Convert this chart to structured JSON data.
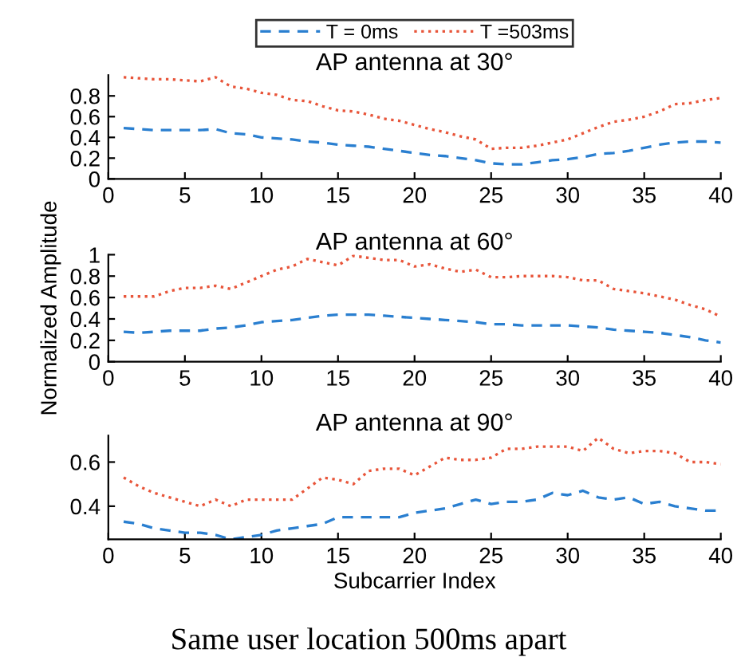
{
  "chart_data": [
    {
      "type": "line",
      "title": "AP antenna at 30°",
      "legend": "top",
      "grid": false,
      "marker": "none",
      "x": [
        1,
        2,
        3,
        4,
        5,
        6,
        7,
        8,
        9,
        10,
        11,
        12,
        13,
        14,
        15,
        16,
        17,
        18,
        19,
        20,
        21,
        22,
        23,
        24,
        25,
        26,
        27,
        28,
        29,
        30,
        31,
        32,
        33,
        34,
        35,
        36,
        37,
        38,
        39,
        40
      ],
      "xlim": [
        0,
        40
      ],
      "xticks": [
        0,
        5,
        10,
        15,
        20,
        25,
        30,
        35,
        40
      ],
      "ylim": [
        0,
        1
      ],
      "yticks": [
        0,
        0.2,
        0.4,
        0.6,
        0.8
      ],
      "series": [
        {
          "name": "T = 0ms",
          "color": "#2a7fd0",
          "line_style": "dashed",
          "values": [
            0.49,
            0.48,
            0.47,
            0.47,
            0.47,
            0.47,
            0.48,
            0.44,
            0.43,
            0.4,
            0.39,
            0.38,
            0.36,
            0.35,
            0.33,
            0.32,
            0.31,
            0.29,
            0.27,
            0.25,
            0.23,
            0.22,
            0.2,
            0.18,
            0.15,
            0.14,
            0.14,
            0.16,
            0.18,
            0.19,
            0.21,
            0.24,
            0.25,
            0.27,
            0.3,
            0.33,
            0.35,
            0.36,
            0.36,
            0.35
          ]
        },
        {
          "name": "T =503ms",
          "color": "#e8553a",
          "line_style": "dotted",
          "values": [
            0.98,
            0.97,
            0.96,
            0.96,
            0.95,
            0.94,
            0.98,
            0.89,
            0.87,
            0.83,
            0.81,
            0.76,
            0.75,
            0.7,
            0.66,
            0.65,
            0.62,
            0.58,
            0.56,
            0.52,
            0.48,
            0.45,
            0.41,
            0.38,
            0.29,
            0.3,
            0.3,
            0.32,
            0.35,
            0.38,
            0.44,
            0.5,
            0.55,
            0.57,
            0.6,
            0.65,
            0.72,
            0.73,
            0.76,
            0.78
          ]
        }
      ]
    },
    {
      "type": "line",
      "title": "AP antenna at 60°",
      "ylabel": "Normalized Amplitude",
      "grid": false,
      "marker": "none",
      "x": [
        1,
        2,
        3,
        4,
        5,
        6,
        7,
        8,
        9,
        10,
        11,
        12,
        13,
        14,
        15,
        16,
        17,
        18,
        19,
        20,
        21,
        22,
        23,
        24,
        25,
        26,
        27,
        28,
        29,
        30,
        31,
        32,
        33,
        34,
        35,
        36,
        37,
        38,
        39,
        40
      ],
      "xlim": [
        0,
        40
      ],
      "xticks": [
        0,
        5,
        10,
        15,
        20,
        25,
        30,
        35,
        40
      ],
      "ylim": [
        0,
        1
      ],
      "yticks": [
        0,
        0.2,
        0.4,
        0.6,
        0.8,
        1
      ],
      "series": [
        {
          "color": "#2a7fd0",
          "line_style": "dashed",
          "values": [
            0.28,
            0.27,
            0.28,
            0.29,
            0.29,
            0.29,
            0.31,
            0.32,
            0.34,
            0.37,
            0.38,
            0.39,
            0.41,
            0.43,
            0.44,
            0.44,
            0.44,
            0.43,
            0.42,
            0.41,
            0.4,
            0.39,
            0.38,
            0.37,
            0.35,
            0.35,
            0.34,
            0.34,
            0.34,
            0.34,
            0.33,
            0.32,
            0.3,
            0.29,
            0.28,
            0.27,
            0.25,
            0.23,
            0.2,
            0.18
          ]
        },
        {
          "color": "#e8553a",
          "line_style": "dotted",
          "values": [
            0.61,
            0.61,
            0.61,
            0.66,
            0.69,
            0.69,
            0.71,
            0.68,
            0.74,
            0.8,
            0.86,
            0.89,
            0.96,
            0.93,
            0.9,
            0.99,
            0.97,
            0.95,
            0.95,
            0.89,
            0.91,
            0.87,
            0.84,
            0.86,
            0.79,
            0.79,
            0.8,
            0.8,
            0.8,
            0.79,
            0.76,
            0.76,
            0.68,
            0.66,
            0.64,
            0.61,
            0.58,
            0.53,
            0.49,
            0.42
          ]
        }
      ]
    },
    {
      "type": "line",
      "title": "AP antenna at 90°",
      "xlabel": "Subcarrier Index",
      "grid": false,
      "marker": "none",
      "annotations": [
        "Same user location 500ms apart"
      ],
      "x": [
        1,
        2,
        3,
        4,
        5,
        6,
        7,
        8,
        9,
        10,
        11,
        12,
        13,
        14,
        15,
        16,
        17,
        18,
        19,
        20,
        21,
        22,
        23,
        24,
        25,
        26,
        27,
        28,
        29,
        30,
        31,
        32,
        33,
        34,
        35,
        36,
        37,
        38,
        39,
        40
      ],
      "xlim": [
        0,
        40
      ],
      "xticks": [
        0,
        5,
        10,
        15,
        20,
        25,
        30,
        35,
        40
      ],
      "ylim": [
        0.25,
        0.72
      ],
      "yticks": [
        0.4,
        0.6
      ],
      "series": [
        {
          "color": "#2a7fd0",
          "line_style": "dashed",
          "values": [
            0.33,
            0.32,
            0.3,
            0.29,
            0.28,
            0.28,
            0.27,
            0.25,
            0.26,
            0.27,
            0.29,
            0.3,
            0.31,
            0.32,
            0.35,
            0.35,
            0.35,
            0.35,
            0.35,
            0.37,
            0.38,
            0.39,
            0.41,
            0.43,
            0.41,
            0.42,
            0.42,
            0.43,
            0.46,
            0.45,
            0.47,
            0.44,
            0.43,
            0.44,
            0.41,
            0.42,
            0.4,
            0.39,
            0.38,
            0.38
          ]
        },
        {
          "color": "#e8553a",
          "line_style": "dotted",
          "values": [
            0.53,
            0.49,
            0.46,
            0.44,
            0.42,
            0.4,
            0.43,
            0.4,
            0.43,
            0.43,
            0.43,
            0.43,
            0.48,
            0.53,
            0.52,
            0.5,
            0.56,
            0.57,
            0.57,
            0.54,
            0.58,
            0.62,
            0.61,
            0.61,
            0.62,
            0.66,
            0.66,
            0.67,
            0.67,
            0.67,
            0.65,
            0.71,
            0.66,
            0.64,
            0.65,
            0.65,
            0.64,
            0.6,
            0.6,
            0.59
          ]
        }
      ]
    }
  ]
}
